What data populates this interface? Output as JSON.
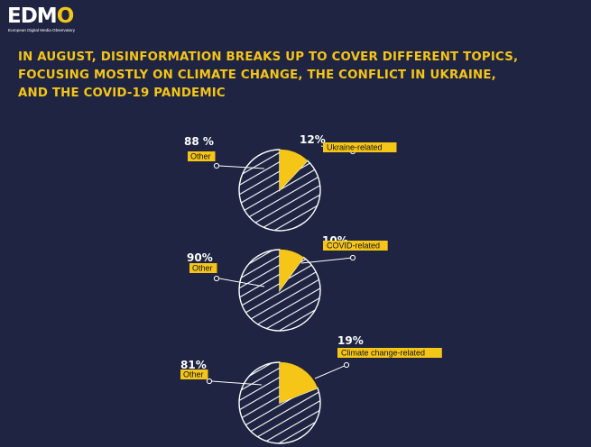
{
  "logo": {
    "word": "EDMO",
    "subtitle": "European Digital Media Observatory"
  },
  "title_lines": [
    "IN AUGUST, DISINFORMATION BREAKS UP TO COVER DIFFERENT TOPICS,",
    "FOCUSING MOSTLY ON CLIMATE CHANGE, THE CONFLICT IN UKRAINE,",
    "AND THE COVID-19 PANDEMIC"
  ],
  "colors": {
    "background": "#1e2441",
    "accent": "#f5c518",
    "hatch": "#ffffff"
  },
  "chart_data": [
    {
      "type": "pie",
      "slices": [
        {
          "label": "Ukraine-related",
          "value": 12,
          "value_text": "12%",
          "style": "solid"
        },
        {
          "label": "Other",
          "value": 88,
          "value_text": "88 %",
          "style": "hatched"
        }
      ]
    },
    {
      "type": "pie",
      "slices": [
        {
          "label": "COVID-related",
          "value": 10,
          "value_text": "10%",
          "style": "solid"
        },
        {
          "label": "Other",
          "value": 90,
          "value_text": "90%",
          "style": "hatched"
        }
      ]
    },
    {
      "type": "pie",
      "slices": [
        {
          "label": "Climate change-related",
          "value": 19,
          "value_text": "19%",
          "style": "solid"
        },
        {
          "label": "Other",
          "value": 81,
          "value_text": "81%",
          "style": "hatched"
        }
      ]
    }
  ]
}
